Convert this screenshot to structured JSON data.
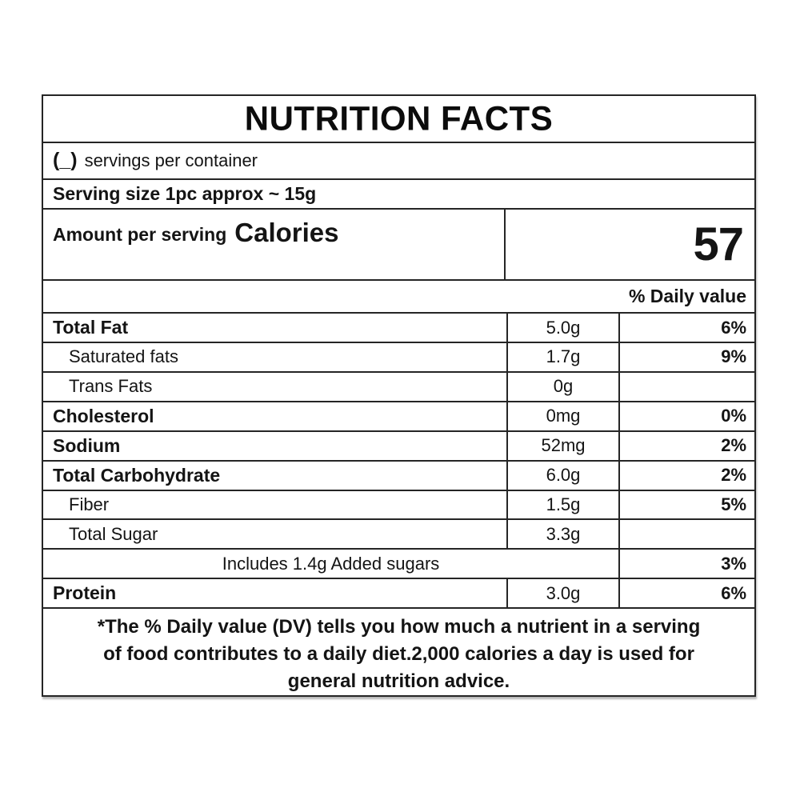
{
  "label": {
    "title": "NUTRITION FACTS",
    "servings_prefix": "(_)",
    "servings_text": "servings per container",
    "serving_size": "Serving size 1pc approx ~ 15g",
    "calories_label": "Amount per serving",
    "calories_name": "Calories",
    "calories_value": "57",
    "daily_value_header": "% Daily value",
    "rows": [
      {
        "name": "Total Fat",
        "amount": "5.0g",
        "dv": "6%"
      },
      {
        "name": "Saturated fats",
        "amount": "1.7g",
        "dv": "9%"
      },
      {
        "name": "Trans Fats",
        "amount": "0g",
        "dv": ""
      },
      {
        "name": "Cholesterol",
        "amount": "0mg",
        "dv": "0%"
      },
      {
        "name": "Sodium",
        "amount": "52mg",
        "dv": "2%"
      },
      {
        "name": "Total Carbohydrate",
        "amount": "6.0g",
        "dv": "2%"
      },
      {
        "name": "Fiber",
        "amount": "1.5g",
        "dv": "5%"
      },
      {
        "name": "Total Sugar",
        "amount": "3.3g",
        "dv": ""
      },
      {
        "name": "Includes 1.4g Added sugars",
        "amount": "",
        "dv": "3%"
      },
      {
        "name": "Protein",
        "amount": "3.0g",
        "dv": "6%"
      }
    ],
    "footnote_lines": [
      "*The % Daily value (DV) tells you how much a nutrient in a serving",
      "of food contributes to a daily diet.2,000 calories a day is used for",
      "general nutrition advice."
    ]
  },
  "colors": {
    "border": "#252525",
    "text": "#141414",
    "background": "#ffffff"
  }
}
